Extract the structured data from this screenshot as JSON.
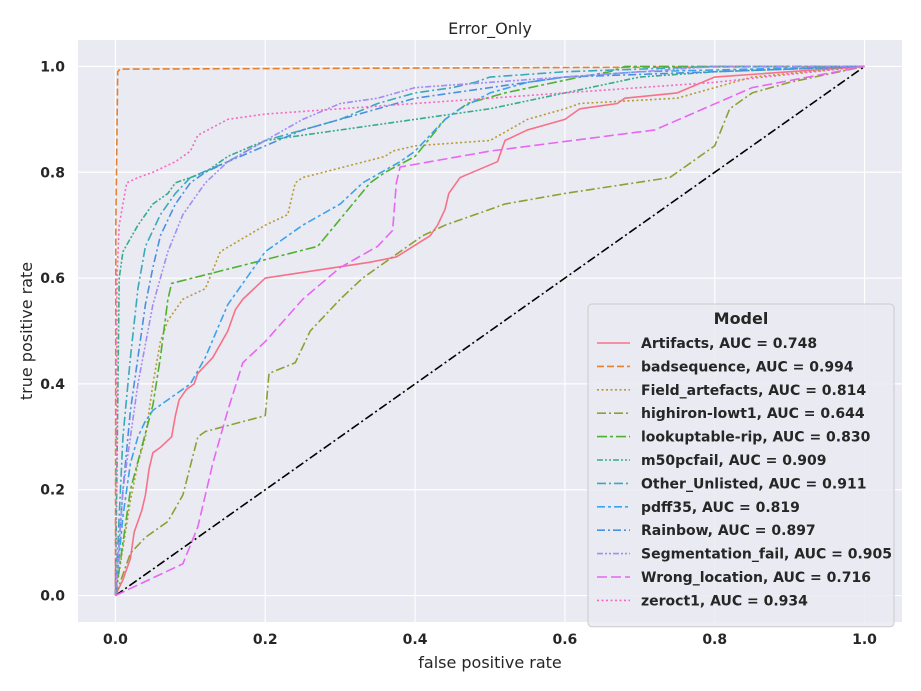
{
  "chart_data": {
    "type": "line",
    "title": "Error_Only",
    "xlabel": "false positive rate",
    "ylabel": "true positive rate",
    "xlim": [
      -0.05,
      1.05
    ],
    "ylim": [
      -0.05,
      1.05
    ],
    "xticks": [
      "0.0",
      "0.2",
      "0.4",
      "0.6",
      "0.8",
      "1.0"
    ],
    "yticks": [
      "0.0",
      "0.2",
      "0.4",
      "0.6",
      "0.8",
      "1.0"
    ],
    "grid": true,
    "legend": {
      "title": "Model",
      "placement": "lower-right"
    },
    "series": [
      {
        "name": "Artifacts, AUC = 0.748",
        "legend_label": "Artifacts, AUC = 0.748",
        "color": "#f77189",
        "dash": "solid",
        "x": [
          0,
          0.01,
          0.02,
          0.025,
          0.03,
          0.035,
          0.04,
          0.045,
          0.05,
          0.06,
          0.075,
          0.08,
          0.085,
          0.095,
          0.105,
          0.11,
          0.13,
          0.15,
          0.16,
          0.17,
          0.2,
          0.34,
          0.375,
          0.42,
          0.43,
          0.44,
          0.445,
          0.46,
          0.51,
          0.52,
          0.55,
          0.6,
          0.62,
          0.67,
          0.68,
          0.75,
          0.8,
          1.0
        ],
        "y": [
          0,
          0.03,
          0.07,
          0.12,
          0.14,
          0.16,
          0.19,
          0.24,
          0.27,
          0.28,
          0.3,
          0.34,
          0.37,
          0.39,
          0.4,
          0.42,
          0.45,
          0.5,
          0.54,
          0.56,
          0.6,
          0.63,
          0.64,
          0.68,
          0.7,
          0.73,
          0.76,
          0.79,
          0.82,
          0.86,
          0.88,
          0.9,
          0.92,
          0.93,
          0.94,
          0.95,
          0.98,
          1.0
        ]
      },
      {
        "name": "badsequence, AUC = 0.994",
        "legend_label": "badsequence, AUC = 0.994",
        "color": "#e5812f",
        "dash": "dashed",
        "x": [
          0,
          0.0005,
          0.003,
          0.006,
          1.0
        ],
        "y": [
          0,
          0.7,
          0.99,
          0.995,
          1.0
        ],
        "dasharray": "7,3"
      },
      {
        "name": "Field_artefacts, AUC = 0.814",
        "legend_label": "Field_artefacts, AUC = 0.814",
        "color": "#b99a31",
        "dash": "dotted",
        "x": [
          0,
          0.02,
          0.03,
          0.04,
          0.05,
          0.06,
          0.07,
          0.09,
          0.12,
          0.14,
          0.2,
          0.23,
          0.24,
          0.25,
          0.36,
          0.37,
          0.4,
          0.5,
          0.55,
          0.6,
          0.62,
          0.75,
          0.8,
          0.85,
          1.0
        ],
        "y": [
          0,
          0.18,
          0.25,
          0.3,
          0.4,
          0.48,
          0.52,
          0.56,
          0.58,
          0.65,
          0.7,
          0.72,
          0.78,
          0.79,
          0.83,
          0.84,
          0.85,
          0.86,
          0.9,
          0.92,
          0.93,
          0.94,
          0.96,
          0.98,
          1.0
        ]
      },
      {
        "name": "highiron-lowt1, AUC = 0.644",
        "legend_label": "highiron-lowt1, AUC = 0.644",
        "color": "#8f9f32",
        "dash": "dashdot",
        "x": [
          0,
          0.02,
          0.04,
          0.07,
          0.09,
          0.11,
          0.12,
          0.2,
          0.205,
          0.24,
          0.26,
          0.28,
          0.3,
          0.33,
          0.36,
          0.41,
          0.44,
          0.52,
          0.6,
          0.74,
          0.8,
          0.82,
          0.85,
          0.9,
          1.0
        ],
        "y": [
          0,
          0.08,
          0.11,
          0.14,
          0.19,
          0.3,
          0.31,
          0.34,
          0.42,
          0.44,
          0.5,
          0.53,
          0.56,
          0.6,
          0.63,
          0.68,
          0.7,
          0.74,
          0.76,
          0.79,
          0.85,
          0.92,
          0.95,
          0.97,
          1.0
        ]
      },
      {
        "name": "lookuptable-rip, AUC = 0.830",
        "legend_label": "lookuptable-rip, AUC = 0.830",
        "color": "#50b131",
        "dash": "dashdot",
        "x": [
          0,
          0.02,
          0.05,
          0.06,
          0.07,
          0.075,
          0.27,
          0.34,
          0.36,
          0.4,
          0.44,
          0.47,
          0.52,
          0.62,
          0.66,
          0.68,
          1.0
        ],
        "y": [
          0,
          0.2,
          0.36,
          0.45,
          0.56,
          0.59,
          0.66,
          0.78,
          0.8,
          0.83,
          0.9,
          0.93,
          0.95,
          0.98,
          0.99,
          1.0,
          1.0
        ],
        "dasharray": "10,3,3,3"
      },
      {
        "name": "m50pcfail, AUC = 0.909",
        "legend_label": "m50pcfail, AUC = 0.909",
        "color": "#35ad8a",
        "dash": "dashdotdot",
        "x": [
          0,
          0.005,
          0.01,
          0.03,
          0.05,
          0.07,
          0.08,
          0.12,
          0.15,
          0.2,
          0.3,
          0.4,
          0.5,
          0.6,
          0.7,
          0.8,
          1.0
        ],
        "y": [
          0,
          0.6,
          0.65,
          0.7,
          0.74,
          0.76,
          0.78,
          0.8,
          0.83,
          0.86,
          0.88,
          0.9,
          0.92,
          0.95,
          0.98,
          0.99,
          1.0
        ]
      },
      {
        "name": "Other_Unlisted, AUC = 0.911",
        "legend_label": "Other_Unlisted, AUC = 0.911",
        "color": "#38aab8",
        "dash": "dashed",
        "x": [
          0,
          0.01,
          0.02,
          0.03,
          0.04,
          0.06,
          0.08,
          0.1,
          0.15,
          0.2,
          0.25,
          0.3,
          0.35,
          0.4,
          0.45,
          0.48,
          0.5,
          0.6,
          0.8,
          1.0
        ],
        "y": [
          0,
          0.3,
          0.45,
          0.58,
          0.66,
          0.72,
          0.76,
          0.79,
          0.82,
          0.86,
          0.88,
          0.9,
          0.93,
          0.95,
          0.96,
          0.97,
          0.98,
          0.99,
          1.0,
          1.0
        ],
        "dasharray": "9,3,2,3"
      },
      {
        "name": "pdff35, AUC = 0.819",
        "legend_label": "pdff35, AUC = 0.819",
        "color": "#3ba3ec",
        "dash": "dashdot",
        "x": [
          0,
          0.01,
          0.02,
          0.03,
          0.04,
          0.05,
          0.06,
          0.08,
          0.1,
          0.12,
          0.15,
          0.2,
          0.25,
          0.3,
          0.33,
          0.38,
          0.4,
          0.42,
          0.44,
          0.46,
          0.5,
          0.55,
          0.6,
          0.7,
          1.0
        ],
        "y": [
          0,
          0.15,
          0.25,
          0.3,
          0.33,
          0.35,
          0.36,
          0.38,
          0.4,
          0.45,
          0.55,
          0.65,
          0.7,
          0.74,
          0.78,
          0.82,
          0.84,
          0.87,
          0.9,
          0.92,
          0.95,
          0.97,
          0.98,
          0.99,
          1.0
        ],
        "dasharray": "8,3,3,3"
      },
      {
        "name": "Rainbow, AUC = 0.897",
        "legend_label": "Rainbow, AUC = 0.897",
        "color": "#4a90e2",
        "dash": "dashdot",
        "x": [
          0,
          0.01,
          0.02,
          0.03,
          0.04,
          0.05,
          0.06,
          0.08,
          0.1,
          0.12,
          0.15,
          0.2,
          0.25,
          0.3,
          0.35,
          0.4,
          0.5,
          0.6,
          0.8,
          1.0
        ],
        "y": [
          0,
          0.2,
          0.35,
          0.45,
          0.55,
          0.62,
          0.68,
          0.74,
          0.78,
          0.8,
          0.82,
          0.85,
          0.88,
          0.9,
          0.92,
          0.94,
          0.96,
          0.98,
          0.99,
          1.0
        ],
        "dasharray": "8,3,2,3"
      },
      {
        "name": "Segmentation_fail, AUC = 0.905",
        "legend_label": "Segmentation_fail, AUC = 0.905",
        "color": "#a48cf4",
        "dash": "dashdotdot",
        "x": [
          0,
          0.01,
          0.03,
          0.05,
          0.07,
          0.09,
          0.12,
          0.15,
          0.2,
          0.25,
          0.3,
          0.35,
          0.4,
          0.5,
          0.6,
          0.7,
          0.8,
          1.0
        ],
        "y": [
          0,
          0.2,
          0.4,
          0.55,
          0.65,
          0.72,
          0.78,
          0.82,
          0.86,
          0.9,
          0.93,
          0.94,
          0.96,
          0.97,
          0.98,
          0.99,
          1.0,
          1.0
        ]
      },
      {
        "name": "Wrong_location, AUC = 0.716",
        "legend_label": "Wrong_location, AUC = 0.716",
        "color": "#e866f4",
        "dash": "dashed",
        "x": [
          0,
          0.09,
          0.11,
          0.13,
          0.15,
          0.17,
          0.2,
          0.25,
          0.3,
          0.35,
          0.37,
          0.375,
          0.38,
          0.5,
          0.72,
          0.85,
          1.0
        ],
        "y": [
          0,
          0.06,
          0.13,
          0.25,
          0.35,
          0.44,
          0.48,
          0.56,
          0.62,
          0.66,
          0.69,
          0.78,
          0.81,
          0.84,
          0.88,
          0.96,
          1.0
        ],
        "dasharray": "10,4"
      },
      {
        "name": "zeroct1, AUC = 0.934",
        "legend_label": "zeroct1, AUC = 0.934",
        "color": "#f668c2",
        "dash": "dotted",
        "x": [
          0,
          0.002,
          0.005,
          0.01,
          0.015,
          0.03,
          0.05,
          0.08,
          0.1,
          0.11,
          0.15,
          0.2,
          0.3,
          0.4,
          0.5,
          0.6,
          0.8,
          1.0
        ],
        "y": [
          0,
          0.6,
          0.7,
          0.74,
          0.78,
          0.79,
          0.8,
          0.82,
          0.84,
          0.87,
          0.9,
          0.91,
          0.92,
          0.93,
          0.94,
          0.95,
          0.97,
          1.0
        ]
      }
    ],
    "reference_line": {
      "x": [
        0,
        1
      ],
      "y": [
        0,
        1
      ],
      "color": "#000000",
      "dash": "dashdot"
    }
  },
  "style": {
    "plot_bg": "#eaeaf2",
    "grid_color": "#ffffff",
    "text_color": "#262626"
  }
}
